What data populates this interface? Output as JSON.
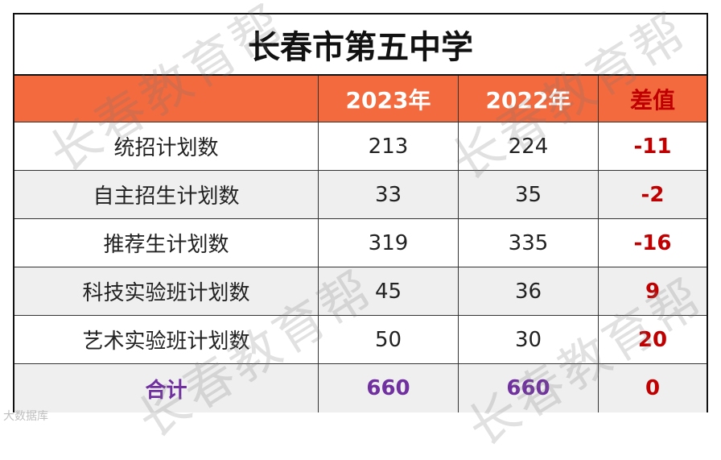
{
  "title": "长春市第五中学",
  "headers": [
    "",
    "2023年",
    "2022年",
    "差值"
  ],
  "rows": [
    {
      "label": "统招计划数",
      "y2023": "213",
      "y2022": "224",
      "diff": "-11"
    },
    {
      "label": "自主招生计划数",
      "y2023": "33",
      "y2022": "35",
      "diff": "-2"
    },
    {
      "label": "推荐生计划数",
      "y2023": "319",
      "y2022": "335",
      "diff": "-16"
    },
    {
      "label": "科技实验班计划数",
      "y2023": "45",
      "y2022": "36",
      "diff": "9"
    },
    {
      "label": "艺术实验班计划数",
      "y2023": "50",
      "y2022": "30",
      "diff": "20"
    }
  ],
  "total": {
    "label": "合计",
    "y2023": "660",
    "y2022": "660",
    "diff": "0"
  },
  "watermark": "长春教育帮",
  "footer_note": "大数据库",
  "colors": {
    "header_bg": "#f26a3e",
    "diff_red": "#c00000",
    "total_purple": "#7030a0",
    "alt_row": "#efefef"
  }
}
